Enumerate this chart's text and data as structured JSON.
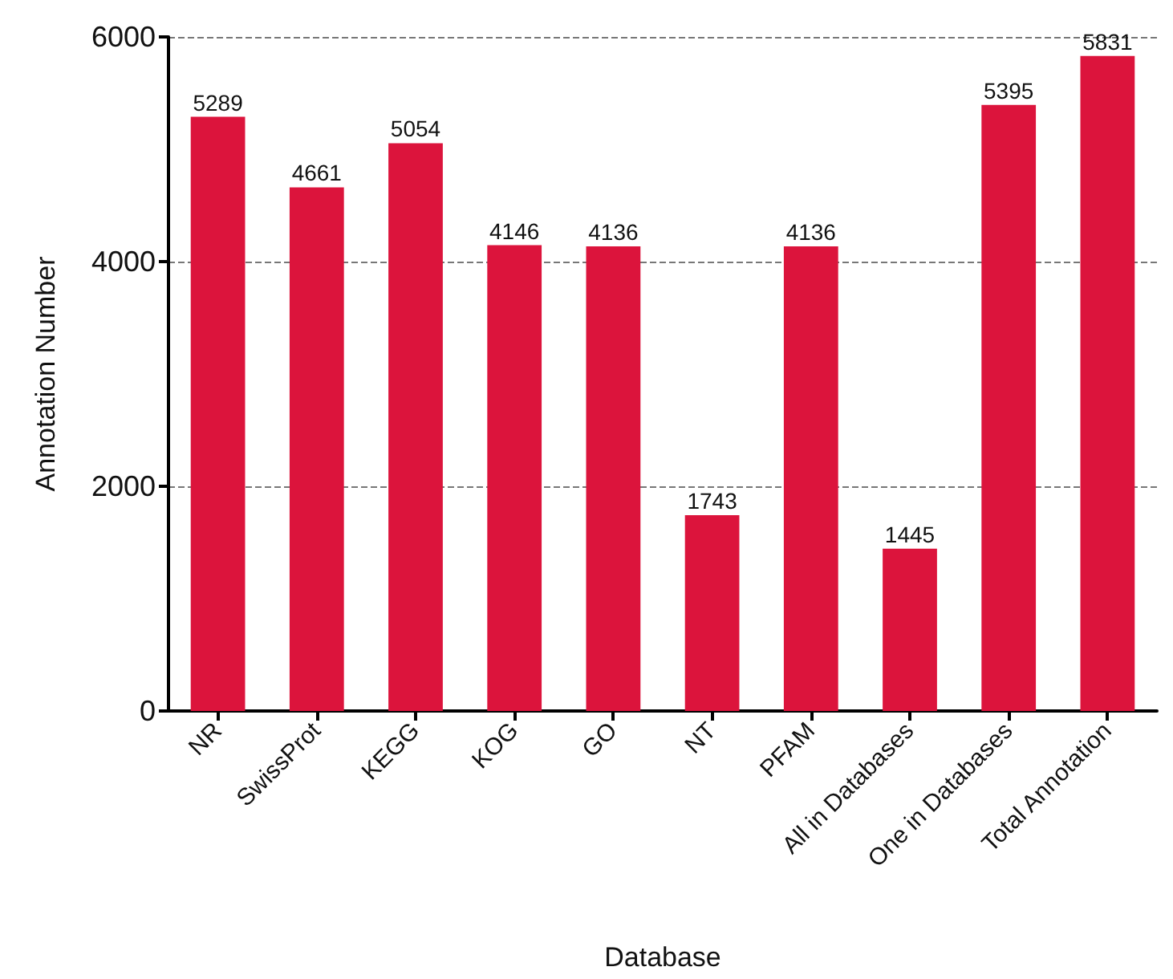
{
  "chart_data": {
    "type": "bar",
    "xlabel": "Database",
    "ylabel": "Annotation Number",
    "categories": [
      "NR",
      "SwissProt",
      "KEGG",
      "KOG",
      "GO",
      "NT",
      "PFAM",
      "All in Databases",
      "One in Databases",
      "Total Annotation"
    ],
    "values": [
      5289,
      4661,
      5054,
      4146,
      4136,
      1743,
      4136,
      1445,
      5395,
      5831
    ],
    "color": "#dc143c",
    "ylim": [
      0,
      6000
    ],
    "yticks": [
      0,
      2000,
      4000,
      6000
    ],
    "grid": "y",
    "data_labels": true
  }
}
